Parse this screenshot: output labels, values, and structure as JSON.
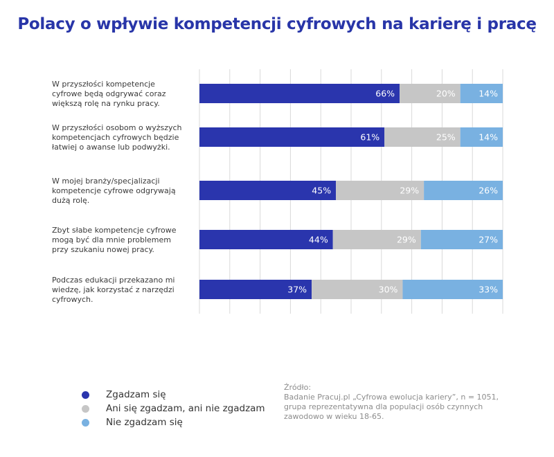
{
  "chart_data": {
    "type": "bar",
    "orientation": "horizontal",
    "stacked": true,
    "title": "Polacy o wpływie kompetencji cyfrowych na karierę i pracę",
    "categories": [
      [
        "W przyszłości kompetencje",
        "cyfrowe będą odgrywać coraz",
        "większą rolę na rynku pracy."
      ],
      [
        "W przyszłości osobom o wyższych",
        "kompetencjach cyfrowych będzie",
        "łatwiej o awanse lub podwyżki."
      ],
      [
        "W mojej branży/specjalizacji",
        "kompetencje cyfrowe odgrywają",
        "dużą rolę."
      ],
      [
        "Zbyt słabe kompetencje cyfrowe",
        "mogą być dla mnie problemem",
        "przy szukaniu nowej pracy."
      ],
      [
        "Podczas edukacji przekazano mi",
        "wiedzę, jak korzystać z narzędzi",
        "cyfrowych."
      ]
    ],
    "series": [
      {
        "name": "Zgadzam się",
        "color": "#2a35ad",
        "values": [
          66,
          61,
          45,
          44,
          37
        ]
      },
      {
        "name": "Ani się zgadzam, ani nie zgadzam",
        "color": "#c6c6c6",
        "values": [
          20,
          25,
          29,
          29,
          30
        ]
      },
      {
        "name": "Nie zgadzam się",
        "color": "#79b1e1",
        "values": [
          14,
          14,
          26,
          27,
          33
        ]
      }
    ],
    "value_suffix": "%",
    "xlim": [
      0,
      100
    ],
    "grid": true
  },
  "source": {
    "label": "Źródło:",
    "text": "Badanie Pracuj.pl „Cyfrowa ewolucja kariery”, n = 1051, grupa reprezentatywna dla populacji osób czynnych zawodowo w wieku 18-65."
  }
}
